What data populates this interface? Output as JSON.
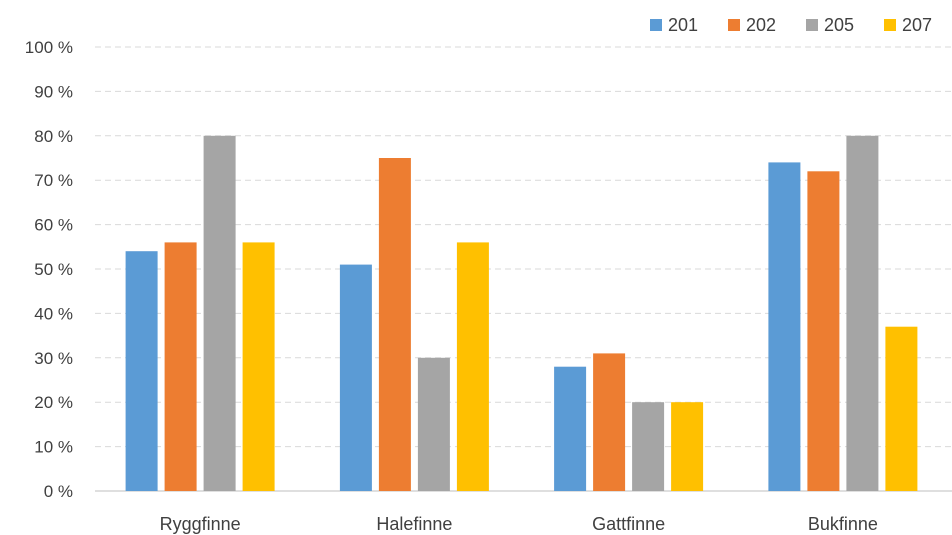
{
  "chart_data": {
    "type": "bar",
    "categories": [
      "Ryggfinne",
      "Halefinne",
      "Gattfinne",
      "Bukfinne"
    ],
    "series": [
      {
        "name": "201",
        "color": "#5B9BD5",
        "values": [
          54,
          51,
          28,
          74
        ]
      },
      {
        "name": "202",
        "color": "#ED7D31",
        "values": [
          56,
          75,
          31,
          72
        ]
      },
      {
        "name": "205",
        "color": "#A5A5A5",
        "values": [
          80,
          30,
          20,
          80
        ]
      },
      {
        "name": "207",
        "color": "#FFC000",
        "values": [
          56,
          56,
          20,
          37
        ]
      }
    ],
    "yticks": [
      "0 %",
      "10 %",
      "20 %",
      "30 %",
      "40 %",
      "50 %",
      "60 %",
      "70 %",
      "80 %",
      "90 %",
      "100 %"
    ],
    "ylim": [
      0,
      100
    ],
    "grid": true,
    "legend_position": "top-right",
    "title": "",
    "xlabel": "",
    "ylabel": ""
  }
}
